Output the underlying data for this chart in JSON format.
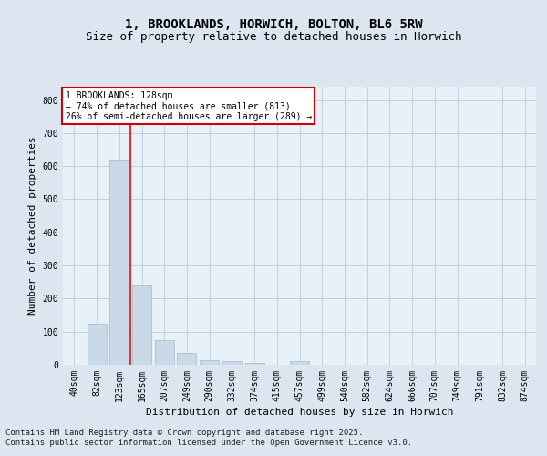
{
  "title": "1, BROOKLANDS, HORWICH, BOLTON, BL6 5RW",
  "subtitle": "Size of property relative to detached houses in Horwich",
  "xlabel": "Distribution of detached houses by size in Horwich",
  "ylabel": "Number of detached properties",
  "bar_labels": [
    "40sqm",
    "82sqm",
    "123sqm",
    "165sqm",
    "207sqm",
    "249sqm",
    "290sqm",
    "332sqm",
    "374sqm",
    "415sqm",
    "457sqm",
    "499sqm",
    "540sqm",
    "582sqm",
    "624sqm",
    "666sqm",
    "707sqm",
    "749sqm",
    "791sqm",
    "832sqm",
    "874sqm"
  ],
  "bar_values": [
    0,
    125,
    620,
    240,
    75,
    35,
    15,
    10,
    5,
    0,
    10,
    0,
    0,
    0,
    0,
    0,
    0,
    0,
    0,
    0,
    0
  ],
  "bar_color": "#c9d9e8",
  "bar_edge_color": "#a0b8cc",
  "grid_color": "#c0cfe0",
  "property_line_x": 2.48,
  "annotation_text": "1 BROOKLANDS: 128sqm\n← 74% of detached houses are smaller (813)\n26% of semi-detached houses are larger (289) →",
  "annotation_box_color": "#cc0000",
  "ylim": [
    0,
    840
  ],
  "yticks": [
    0,
    100,
    200,
    300,
    400,
    500,
    600,
    700,
    800
  ],
  "footer_line1": "Contains HM Land Registry data © Crown copyright and database right 2025.",
  "footer_line2": "Contains public sector information licensed under the Open Government Licence v3.0.",
  "bg_color": "#dce6f0",
  "plot_bg_color": "#e8f0f8",
  "title_fontsize": 10,
  "subtitle_fontsize": 9,
  "tick_fontsize": 7,
  "footer_fontsize": 6.5,
  "ylabel_fontsize": 8,
  "xlabel_fontsize": 8
}
